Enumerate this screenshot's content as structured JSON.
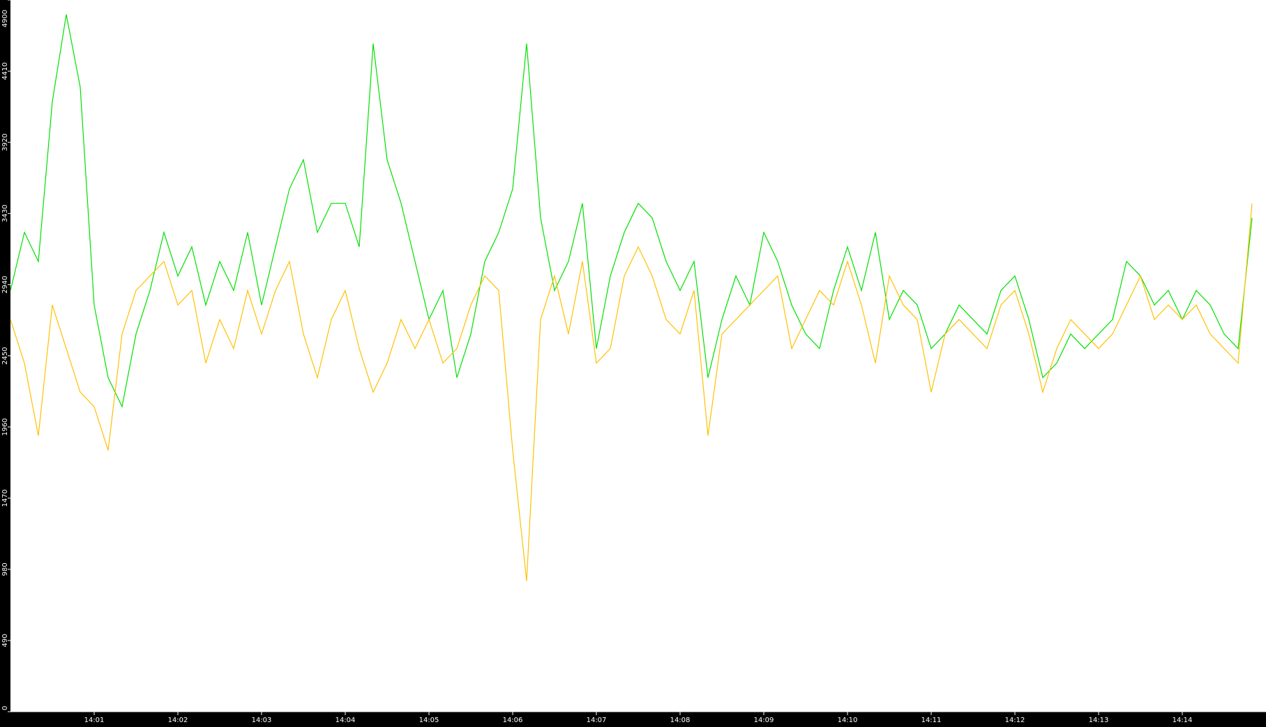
{
  "chart_data": {
    "type": "line",
    "xlabel": "",
    "ylabel": "",
    "x_start": "14:00:00",
    "x_step_seconds": 10,
    "xlim": [
      "14:00:00",
      "14:15:00"
    ],
    "ylim": [
      0,
      4900
    ],
    "yticks": [
      "0",
      "490",
      "980",
      "1470",
      "1960",
      "2450",
      "2940",
      "3430",
      "3920",
      "4410",
      "4900"
    ],
    "xticks": [
      "14:01",
      "14:02",
      "14:03",
      "14:04",
      "14:05",
      "14:06",
      "14:07",
      "14:08",
      "14:09",
      "14:10",
      "14:11",
      "14:12",
      "14:13",
      "14:14"
    ],
    "grid": false,
    "legend": "none",
    "background": "#ffffff",
    "axis_background": "#000000",
    "series": [
      {
        "color": "#00e000",
        "values": [
          2900,
          3300,
          3100,
          4200,
          4800,
          4300,
          2800,
          2300,
          2100,
          2600,
          2900,
          3300,
          3000,
          3200,
          2800,
          3100,
          2900,
          3300,
          2800,
          3200,
          3600,
          3800,
          3300,
          3500,
          3500,
          3200,
          4600,
          3800,
          3500,
          3100,
          2700,
          2900,
          2300,
          2600,
          3100,
          3300,
          3600,
          4600,
          3400,
          2900,
          3100,
          3500,
          2500,
          3000,
          3300,
          3500,
          3400,
          3100,
          2900,
          3100,
          2300,
          2700,
          3000,
          2800,
          3300,
          3100,
          2800,
          2600,
          2500,
          2900,
          3200,
          2900,
          3300,
          2700,
          2900,
          2800,
          2500,
          2600,
          2800,
          2700,
          2600,
          2900,
          3000,
          2700,
          2300,
          2400,
          2600,
          2500,
          2600,
          2700,
          3100,
          3000,
          2800,
          2900,
          2700,
          2900,
          2800,
          2600,
          2500,
          3400
        ]
      },
      {
        "color": "#ffc000",
        "values": [
          2700,
          2400,
          1900,
          2800,
          2500,
          2200,
          2100,
          1800,
          2600,
          2900,
          3000,
          3100,
          2800,
          2900,
          2400,
          2700,
          2500,
          2900,
          2600,
          2900,
          3100,
          2600,
          2300,
          2700,
          2900,
          2500,
          2200,
          2400,
          2700,
          2500,
          2700,
          2400,
          2500,
          2800,
          3000,
          2900,
          1800,
          900,
          2700,
          3000,
          2600,
          3100,
          2400,
          2500,
          3000,
          3200,
          3000,
          2700,
          2600,
          2900,
          1900,
          2600,
          2700,
          2800,
          2900,
          3000,
          2500,
          2700,
          2900,
          2800,
          3100,
          2800,
          2400,
          3000,
          2800,
          2700,
          2200,
          2600,
          2700,
          2600,
          2500,
          2800,
          2900,
          2600,
          2200,
          2500,
          2700,
          2600,
          2500,
          2600,
          2800,
          3000,
          2700,
          2800,
          2700,
          2800,
          2600,
          2500,
          2400,
          3500
        ]
      }
    ]
  }
}
